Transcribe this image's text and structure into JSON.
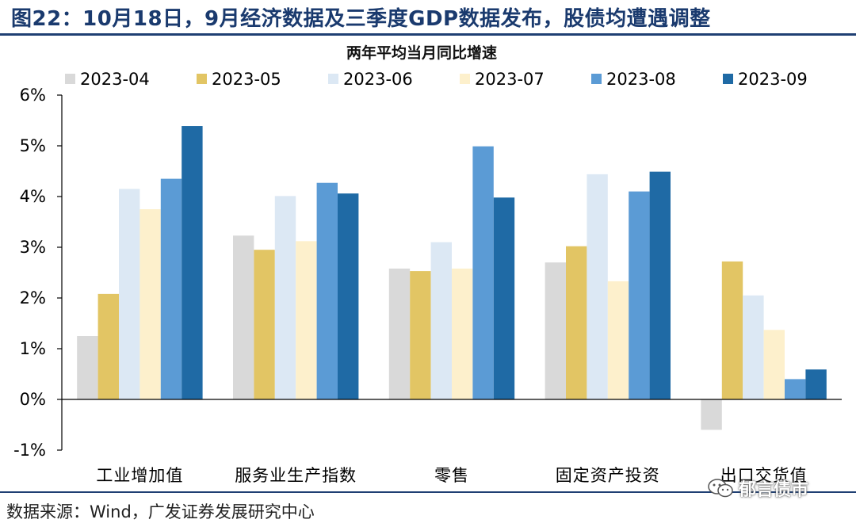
{
  "figure": {
    "title": "图22：10月18日，9月经济数据及三季度GDP数据发布，股债均遭遇调整",
    "source": "数据来源：Wind，广发证券发展研究中心",
    "watermark": "郁言债市"
  },
  "chart_data": {
    "type": "bar",
    "title": "两年平均当月同比增速",
    "categories": [
      "工业增加值",
      "服务业生产指数",
      "零售",
      "固定资产投资",
      "出口交货值"
    ],
    "yticks": [
      "6%",
      "5%",
      "4%",
      "3%",
      "2%",
      "1%",
      "0%",
      "-1%"
    ],
    "ylim": [
      -1,
      6
    ],
    "legend_position": "top",
    "series": [
      {
        "name": "2023-04",
        "color": "#d9d9d9",
        "values": [
          1.25,
          3.23,
          2.58,
          2.7,
          -0.6
        ]
      },
      {
        "name": "2023-05",
        "color": "#e2c564",
        "values": [
          2.08,
          2.95,
          2.53,
          3.02,
          2.72
        ]
      },
      {
        "name": "2023-06",
        "color": "#dce8f4",
        "values": [
          4.15,
          4.01,
          3.1,
          4.44,
          2.05
        ]
      },
      {
        "name": "2023-07",
        "color": "#fdf0cc",
        "values": [
          3.75,
          3.12,
          2.58,
          2.33,
          1.37
        ]
      },
      {
        "name": "2023-08",
        "color": "#5b9bd5",
        "values": [
          4.35,
          4.27,
          4.99,
          4.1,
          0.4
        ]
      },
      {
        "name": "2023-09",
        "color": "#1f6aa5",
        "values": [
          5.39,
          4.06,
          3.98,
          4.49,
          0.59
        ]
      }
    ]
  }
}
